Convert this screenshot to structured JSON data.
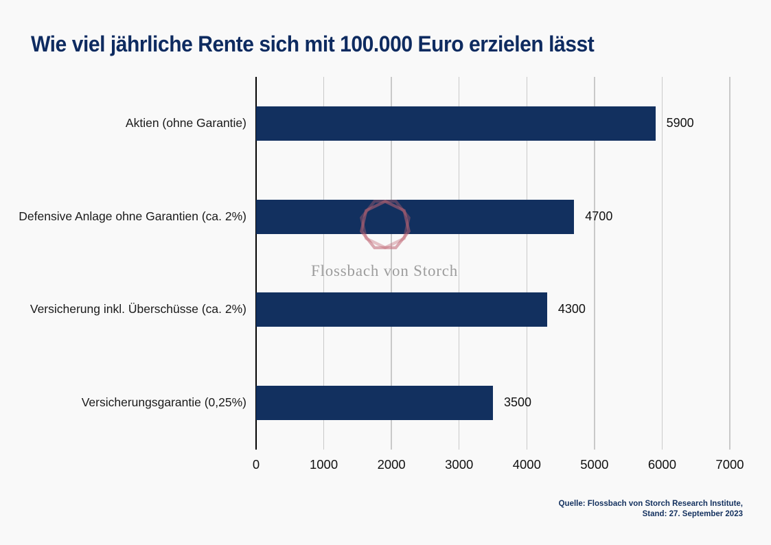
{
  "page": {
    "background_color": "#f9f9f9"
  },
  "title": {
    "text": "Wie viel jährliche Rente sich mit 100.000 Euro erzielen lässt",
    "color": "#0e2b60"
  },
  "chart_data": {
    "type": "bar",
    "orientation": "horizontal",
    "title": "Wie viel jährliche Rente sich mit 100.000 Euro erzielen lässt",
    "categories": [
      "Aktien (ohne Garantie)",
      "Defensive Anlage ohne Garantien (ca. 2%)",
      "Versicherung inkl. Überschüsse (ca. 2%)",
      "Versicherungsgarantie (0,25%)"
    ],
    "values": [
      5900,
      4700,
      4300,
      3500
    ],
    "value_labels": [
      "5900",
      "4700",
      "4300",
      "3500"
    ],
    "xlim": [
      0,
      7000
    ],
    "x_ticks": [
      0,
      1000,
      2000,
      3000,
      4000,
      5000,
      6000,
      7000
    ],
    "grid": true,
    "legend": false,
    "bar_color": "#12305f",
    "gridline_color": "#c9c9c9",
    "axis_color": "#000000"
  },
  "watermark": {
    "brand": "Flossbach von Storch",
    "logo": "heptagon-logo",
    "logo_color": "#bf6472",
    "text_color": "#9d9d9d"
  },
  "source": {
    "line1": "Quelle: Flossbach von Storch Research Institute,",
    "line2": "Stand: 27. September 2023",
    "color": "#13305e"
  }
}
